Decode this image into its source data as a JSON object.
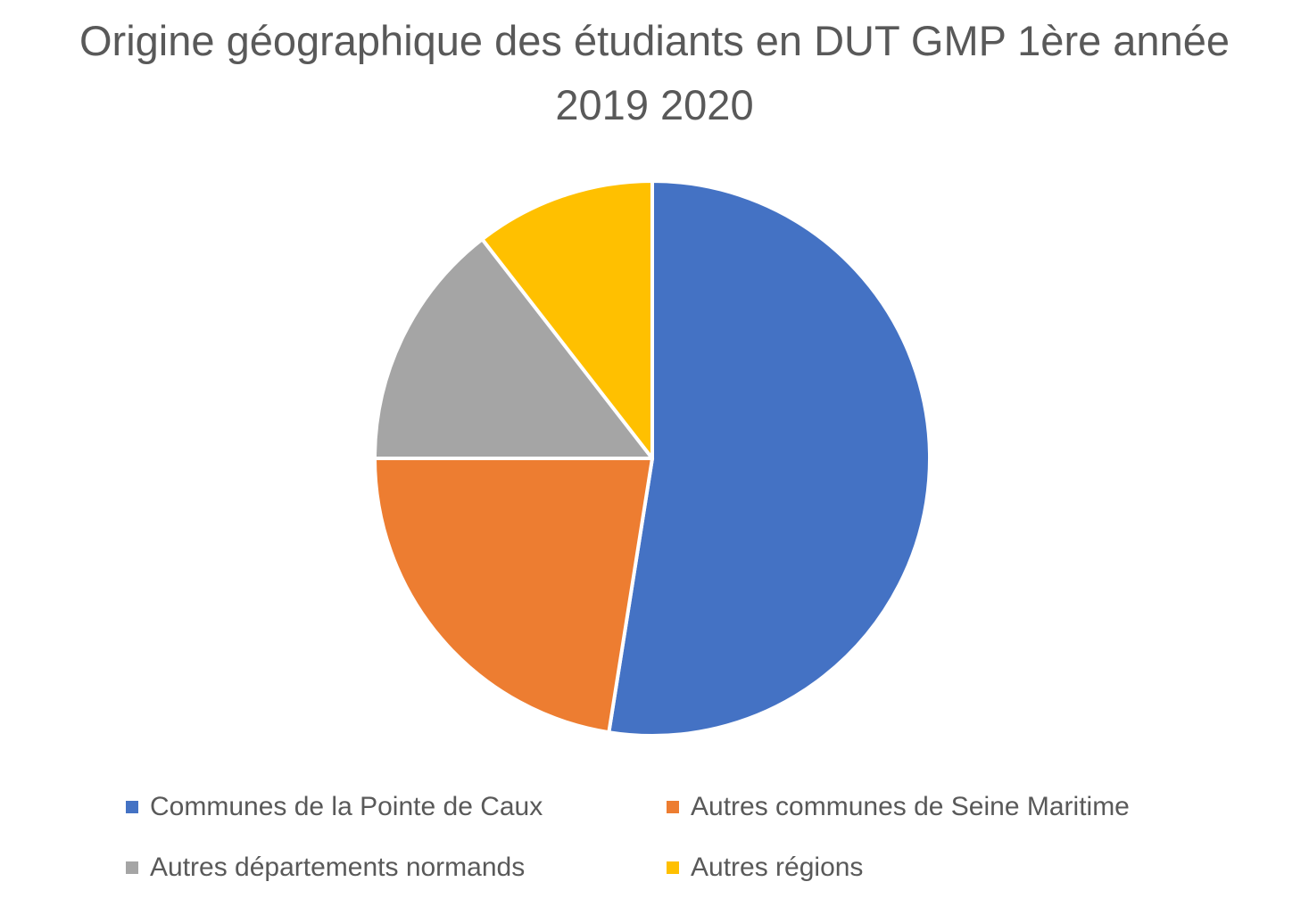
{
  "chart_data": {
    "type": "pie",
    "title_lines": [
      "Origine géographique des étudiants en DUT GMP 1ère année",
      "2019 2020"
    ],
    "categories": [
      "Communes de la Pointe de Caux",
      "Autres communes de Seine Maritime",
      "Autres départements normands",
      "Autres régions"
    ],
    "values": [
      52.5,
      22.5,
      14.5,
      10.5
    ],
    "colors": [
      "#4472C4",
      "#ED7D31",
      "#A5A5A5",
      "#FFC000"
    ],
    "start_angle": "12 o'clock",
    "direction": "clockwise",
    "legend_position": "bottom"
  }
}
